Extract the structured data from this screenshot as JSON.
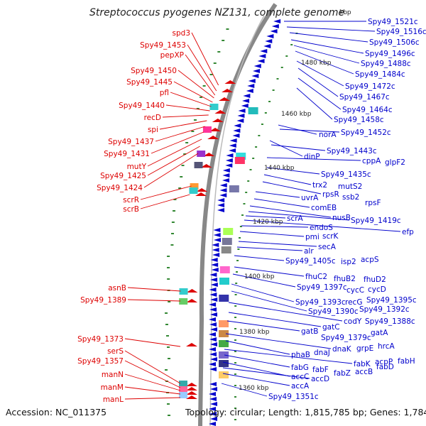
{
  "title": "Streptococcus pyogenes NZ131, complete genome",
  "footer": {
    "accession": "Accession: NC_011375",
    "topology": "Topology: circular; Length: 1,815,785 bp; Genes: 1,784"
  },
  "colors": {
    "forward": "#dd0000",
    "reverse": "#0000cc",
    "backbone": "#888888",
    "tick": "#338833"
  },
  "kbp_marks": [
    "kbp",
    "1480 kbp",
    "1460 kbp",
    "1440 kbp",
    "1420 kbp",
    "1400 kbp",
    "1380 kbp",
    "1360 kbp"
  ],
  "left_genes": [
    "spd3",
    "Spy49_1453",
    "pepXP",
    "Spy49_1450",
    "Spy49_1445",
    "pfl",
    "Spy49_1440",
    "recD",
    "spi",
    "Spy49_1437",
    "Spy49_1431",
    "mutY",
    "Spy49_1425",
    "Spy49_1424",
    "scrR",
    "scrB",
    "asnB",
    "Spy49_1389",
    "Spy49_1373",
    "serS",
    "Spy49_1357",
    "manN",
    "manM",
    "manL"
  ],
  "right_genes": [
    "Spy49_1521c",
    "Spy49_1516c",
    "Spy49_1506c",
    "Spy49_1496c",
    "Spy49_1488c",
    "Spy49_1484c",
    "Spy49_1472c",
    "Spy49_1467c",
    "Spy49_1464c",
    "Spy49_1458c",
    "norA",
    "Spy49_1452c",
    "dinP",
    "Spy49_1443c",
    "cppA",
    "glpF2",
    "Spy49_1435c",
    "trx2",
    "mutS2",
    "rpsR",
    "ssb2",
    "uvrA",
    "rpsF",
    "comEB",
    "nusB",
    "Spy49_1419c",
    "scrA",
    "efp",
    "endoS",
    "pmi",
    "scrK",
    "secA",
    "alr",
    "Spy49_1405c",
    "isp2",
    "acpS",
    "fhuC2",
    "fhuB2",
    "fhuD2",
    "Spy49_1397c",
    "cycC",
    "cycD",
    "Spy49_1393c",
    "recG",
    "Spy49_1395c",
    "Spy49_1390c",
    "Spy49_1392c",
    "codY",
    "Spy49_1388c",
    "gatC",
    "gatB",
    "Spy49_1379c",
    "gatA",
    "dnaK",
    "grpE",
    "hrcA",
    "phaB",
    "dnaJ",
    "fabK",
    "acpP",
    "fabH",
    "fabG",
    "fabF",
    "fabD",
    "accC",
    "fabZ",
    "accB",
    "accD",
    "accA",
    "Spy49_1351c"
  ]
}
